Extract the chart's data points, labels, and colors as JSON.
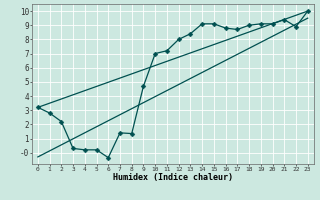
{
  "xlabel": "Humidex (Indice chaleur)",
  "bg_color": "#cce8e0",
  "line_color": "#005050",
  "grid_color": "#ffffff",
  "line1_x": [
    0,
    1,
    2,
    3,
    4,
    5,
    6,
    7,
    8,
    9,
    10,
    11,
    12,
    13,
    14,
    15,
    16,
    17,
    18,
    19,
    20,
    21,
    22,
    23
  ],
  "line1_y": [
    3.2,
    2.8,
    2.2,
    0.3,
    0.2,
    0.2,
    -0.35,
    1.4,
    1.35,
    4.7,
    7.0,
    7.2,
    8.0,
    8.4,
    9.1,
    9.1,
    8.8,
    8.7,
    9.0,
    9.1,
    9.1,
    9.4,
    8.9,
    10.0
  ],
  "line2_x": [
    0,
    23
  ],
  "line2_y": [
    3.2,
    10.0
  ],
  "line3_x": [
    0,
    23
  ],
  "line3_y": [
    -0.3,
    9.5
  ],
  "xlim": [
    -0.5,
    23.5
  ],
  "ylim": [
    -0.8,
    10.5
  ],
  "yticks": [
    0,
    1,
    2,
    3,
    4,
    5,
    6,
    7,
    8,
    9,
    10
  ],
  "ytick_labels": [
    "-0",
    "1",
    "2",
    "3",
    "4",
    "5",
    "6",
    "7",
    "8",
    "9",
    "10"
  ],
  "xtick_labels": [
    "0",
    "1",
    "2",
    "3",
    "4",
    "5",
    "6",
    "7",
    "8",
    "9",
    "10",
    "11",
    "12",
    "13",
    "14",
    "15",
    "16",
    "17",
    "18",
    "19",
    "20",
    "21",
    "22",
    "23"
  ],
  "marker": "D",
  "marker_size": 2.5,
  "linewidth": 0.9
}
